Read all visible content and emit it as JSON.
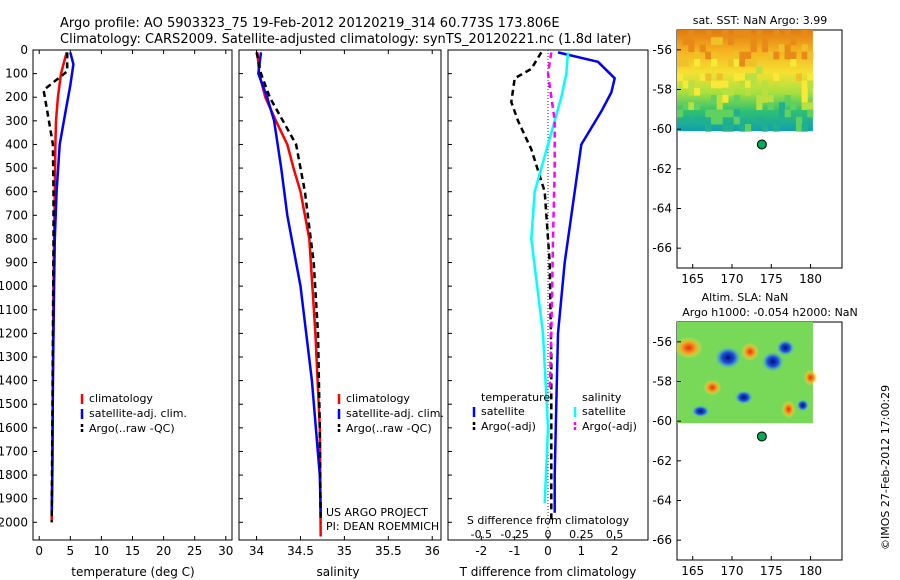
{
  "header": {
    "line1": "Argo profile: AO 5903323_75 19-Feb-2012 20120219_314 60.773S 173.806E",
    "line2": "Climatology: CARS2009. Satellite-adjusted climatology: synTS_20120221.nc (1.8d later)"
  },
  "colors": {
    "climatology": "#ff0000",
    "satellite": "#0000ff",
    "argo": "#000000",
    "salinity_satellite": "#00ffff",
    "salinity_argo": "#ff00ff",
    "float_marker": "#00aa55"
  },
  "chart_data": [
    {
      "type": "line",
      "id": "temperature",
      "xlabel": "temperature (deg C)",
      "ylabel": "",
      "xlim": [
        -1,
        31
      ],
      "ylim": [
        2075,
        0
      ],
      "xticks": [
        0,
        5,
        10,
        15,
        20,
        25,
        30
      ],
      "yticks": [
        0,
        100,
        200,
        300,
        400,
        500,
        600,
        700,
        800,
        900,
        1000,
        1100,
        1200,
        1300,
        1400,
        1500,
        1600,
        1700,
        1800,
        1900,
        2000
      ],
      "legend": [
        "climatology",
        "satellite-adj. clim.",
        "Argo(..raw -QC)"
      ],
      "series": [
        {
          "name": "climatology",
          "style": "red",
          "x": [
            4.4,
            3.5,
            3.0,
            2.7,
            2.6,
            2.5,
            2.4,
            2.3,
            2.2,
            2.1,
            2.0
          ],
          "y": [
            10,
            100,
            200,
            300,
            400,
            600,
            800,
            1000,
            1400,
            1800,
            2000
          ]
        },
        {
          "name": "satellite-adj. clim.",
          "style": "blue",
          "x": [
            5.0,
            5.5,
            5.0,
            4.3,
            3.3,
            2.8,
            2.5,
            2.4,
            2.2,
            2.1,
            2.0
          ],
          "y": [
            10,
            60,
            150,
            250,
            400,
            600,
            800,
            1000,
            1400,
            1800,
            1960
          ]
        },
        {
          "name": "Argo(..raw -QC)",
          "style": "black-dash",
          "x": [
            4.5,
            4.5,
            0.7,
            1.3,
            2.2,
            2.3,
            2.3,
            2.2,
            2.1,
            2.0
          ],
          "y": [
            10,
            90,
            170,
            260,
            400,
            600,
            800,
            1200,
            1600,
            2000
          ]
        }
      ]
    },
    {
      "type": "line",
      "id": "salinity",
      "xlabel": "salinity",
      "ylabel": "",
      "xlim": [
        33.8,
        36.1
      ],
      "ylim": [
        2075,
        0
      ],
      "xticks": [
        34,
        34.5,
        35,
        35.5,
        36
      ],
      "legend": [
        "climatology",
        "satellite-adj. clim.",
        "Argo(..raw -QC)"
      ],
      "annotation": [
        "US ARGO PROJECT",
        "PI: DEAN ROEMMICH"
      ],
      "series": [
        {
          "name": "climatology",
          "style": "red",
          "x": [
            34.01,
            34.03,
            34.1,
            34.22,
            34.35,
            34.42,
            34.5,
            34.6,
            34.67,
            34.72,
            34.73
          ],
          "y": [
            10,
            100,
            200,
            300,
            400,
            500,
            600,
            800,
            1200,
            1600,
            2060
          ]
        },
        {
          "name": "satellite-adj. clim.",
          "style": "blue",
          "x": [
            34.05,
            34.02,
            34.12,
            34.2,
            34.28,
            34.35,
            34.5,
            34.63,
            34.72,
            34.73
          ],
          "y": [
            10,
            100,
            200,
            300,
            500,
            700,
            1000,
            1400,
            1800,
            1960
          ]
        },
        {
          "name": "Argo(..raw -QC)",
          "style": "black-dash",
          "x": [
            34.0,
            34.05,
            34.15,
            34.3,
            34.45,
            34.55,
            34.65,
            34.7,
            34.72,
            34.73
          ],
          "y": [
            10,
            100,
            200,
            300,
            400,
            600,
            900,
            1200,
            1600,
            2000
          ]
        }
      ]
    },
    {
      "type": "line",
      "id": "differences",
      "xlabel": "T difference from climatology",
      "xlabel_top": "S difference from climatology",
      "xlim": [
        -3,
        3
      ],
      "ylim": [
        2075,
        0
      ],
      "xticks_T": [
        -2,
        -1,
        0,
        1,
        2
      ],
      "xticks_S": [
        "-0.5",
        "-0.25",
        "0",
        "0.25",
        "0.5"
      ],
      "legend_temperature_title": "temperature",
      "legend_salinity_title": "salinity",
      "legend_temperature": [
        "satellite",
        "Argo(-adj)"
      ],
      "legend_salinity": [
        "satellite",
        "Argo(-adj)"
      ],
      "series": [
        {
          "name": "T satellite",
          "style": "blue",
          "x": [
            0.3,
            1.5,
            2.0,
            1.9,
            1.6,
            1.0,
            0.8,
            0.5,
            0.3,
            0.25,
            0.2,
            0.2
          ],
          "y": [
            10,
            50,
            120,
            180,
            260,
            400,
            600,
            900,
            1200,
            1500,
            1800,
            1960
          ]
        },
        {
          "name": "T Argo(-adj)",
          "style": "black-dash",
          "x": [
            -0.2,
            -0.5,
            -1.0,
            -1.1,
            -0.9,
            -0.5,
            -0.1,
            0.05,
            0.1,
            0.1,
            0.1
          ],
          "y": [
            10,
            80,
            120,
            220,
            300,
            420,
            600,
            900,
            1300,
            1700,
            2000
          ]
        },
        {
          "name": "S satellite",
          "style": "cyan",
          "x": [
            0.6,
            0.55,
            0.4,
            0.0,
            -0.4,
            -0.5,
            -0.15,
            0.0,
            -0.1
          ],
          "y": [
            10,
            100,
            200,
            400,
            600,
            800,
            1200,
            1600,
            1920
          ]
        },
        {
          "name": "S Argo(-adj)",
          "style": "magenta-dash",
          "x": [
            0.1,
            0.0,
            0.2,
            0.2,
            0.15,
            0.1,
            0.05
          ],
          "y": [
            10,
            100,
            300,
            500,
            800,
            1200,
            1450
          ]
        }
      ]
    },
    {
      "type": "heatmap",
      "id": "sst-map",
      "title": "sat. SST: NaN Argo: 3.99",
      "xlim": [
        163,
        184
      ],
      "ylim": [
        -67,
        -55
      ],
      "xticks": [
        165,
        170,
        175,
        180
      ],
      "yticks": [
        -56,
        -58,
        -60,
        -62,
        -64,
        -66
      ],
      "float_position": [
        173.8,
        -60.77
      ]
    },
    {
      "type": "heatmap",
      "id": "sla-map",
      "title_line1": "Altim. SLA: NaN",
      "title_line2": "Argo h1000: -0.054 h2000: NaN",
      "xlim": [
        163,
        184
      ],
      "ylim": [
        -67,
        -55
      ],
      "xticks": [
        165,
        170,
        175,
        180
      ],
      "yticks": [
        -56,
        -58,
        -60,
        -62,
        -64,
        -66
      ],
      "float_position": [
        173.8,
        -60.77
      ]
    }
  ],
  "watermark": "©IMOS 27-Feb-2012 17:00:29"
}
